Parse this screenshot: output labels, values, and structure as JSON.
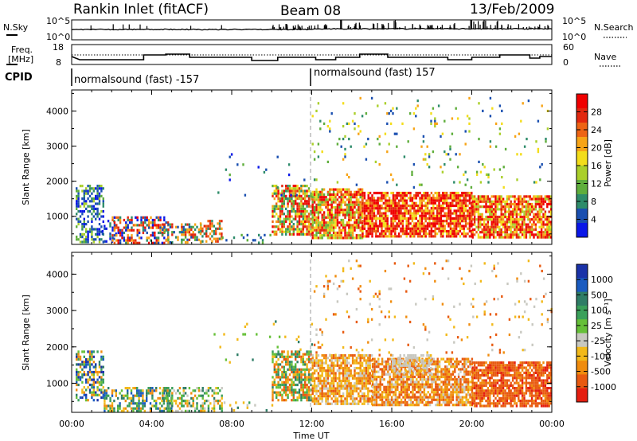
{
  "header": {
    "station": "Rankin Inlet (fitACF)",
    "beam": "Beam 08",
    "date": "13/Feb/2009"
  },
  "noise_panel": {
    "left_label": "N.Sky",
    "right_label": "N.Search",
    "left_ticks": [
      "10^5",
      "10^0"
    ],
    "right_ticks": [
      "10^5",
      "10^0"
    ]
  },
  "freq_panel": {
    "left_label_top": "Freq.",
    "left_label_bottom": "[MHz]",
    "right_label": "Nave",
    "left_ticks": [
      "18",
      "8"
    ],
    "right_ticks": [
      "60",
      "0"
    ]
  },
  "cpid_panel": {
    "label": "CPID",
    "segments": [
      {
        "text": "normalsound (fast) -157"
      },
      {
        "text": "normalsound (fast) 157"
      }
    ]
  },
  "chart_data": [
    {
      "type": "heatmap",
      "panel": "power",
      "ylabel": "Slant Range [km]",
      "xlabel": "",
      "yticks": [
        "1000",
        "2000",
        "3000",
        "4000"
      ],
      "ylim": [
        200,
        4600
      ],
      "xlim": [
        0,
        24
      ],
      "colorbar": {
        "label": "Power [dB]",
        "ticks": [
          "4",
          "8",
          "12",
          "16",
          "20",
          "24",
          "28"
        ],
        "range": [
          0,
          32
        ],
        "colors": [
          "#0a17e8",
          "#1a4fb0",
          "#2e8c6a",
          "#5fae3c",
          "#aacf2a",
          "#f3dd1a",
          "#f7a416",
          "#ee6414",
          "#e2280f",
          "#f00000"
        ]
      }
    },
    {
      "type": "heatmap",
      "panel": "velocity",
      "ylabel": "Slant Range [km]",
      "xlabel": "Time UT",
      "yticks": [
        "1000",
        "2000",
        "3000",
        "4000"
      ],
      "ylim": [
        200,
        4600
      ],
      "xlim": [
        0,
        24
      ],
      "colorbar": {
        "label": "Velocity [m s⁻¹]",
        "ticks": [
          "1000",
          "500",
          "100",
          "25",
          "-25",
          "-100",
          "-500",
          "-1000"
        ],
        "range": [
          -1200,
          1200
        ],
        "colors": [
          "#1a32a8",
          "#1a5bc0",
          "#2f7d66",
          "#3aa05a",
          "#66c038",
          "#c8c8c0",
          "#f2b91a",
          "#f08c0e",
          "#e85a10",
          "#e51e10"
        ]
      },
      "xticks": [
        "00:00",
        "04:00",
        "08:00",
        "12:00",
        "16:00",
        "20:00",
        "00:00"
      ]
    }
  ]
}
